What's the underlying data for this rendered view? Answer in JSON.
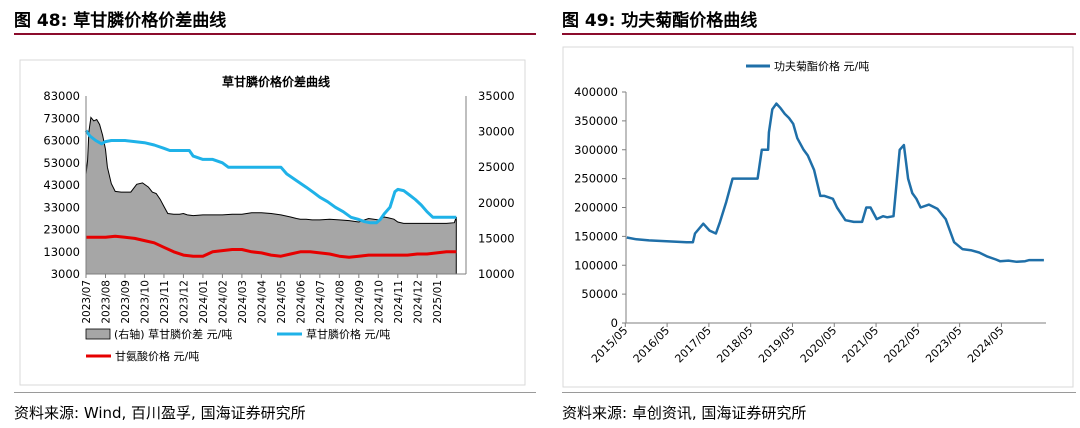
{
  "left": {
    "heading": "图 48: 草甘膦价格价差曲线",
    "source": "资料来源: Wind, 百川盈孚, 国海证券研究所"
  },
  "right": {
    "heading": "图 49: 功夫菊酯价格曲线",
    "source": "资料来源: 卓创资讯, 国海证券研究所"
  },
  "chart_data": [
    {
      "type": "area",
      "title": "草甘膦价格价差曲线",
      "x_tick_labels": [
        "2023/07",
        "2023/08",
        "2023/09",
        "2023/10",
        "2023/11",
        "2023/12",
        "2024/01",
        "2024/02",
        "2024/03",
        "2024/04",
        "2024/05",
        "2024/06",
        "2024/07",
        "2024/08",
        "2024/09",
        "2024/10",
        "2024/11",
        "2024/12",
        "2025/01"
      ],
      "y_left": {
        "ticks": [
          "83000",
          "73000",
          "63000",
          "53000",
          "43000",
          "33000",
          "23000",
          "13000",
          "3000"
        ],
        "ylim": [
          3000,
          83000
        ]
      },
      "y_right": {
        "ticks": [
          "35000",
          "30000",
          "25000",
          "20000",
          "15000",
          "10000"
        ],
        "ylim": [
          10000,
          35000
        ]
      },
      "x_range": [
        0,
        19.5
      ],
      "legend": [
        "(右轴) 草甘膦价差 元/吨",
        "草甘膦价格 元/吨",
        "甘氨酸价格 元/吨"
      ],
      "series": [
        {
          "name": "(右轴) 草甘膦价差 元/吨",
          "axis": "right",
          "color": "#a6a6a6",
          "x": [
            0,
            0.08,
            0.15,
            0.25,
            0.4,
            0.55,
            0.7,
            0.85,
            1.0,
            1.1,
            1.3,
            1.5,
            1.8,
            2.0,
            2.3,
            2.6,
            2.9,
            3.2,
            3.4,
            3.6,
            3.8,
            4.0,
            4.2,
            4.5,
            4.8,
            5.0,
            5.2,
            5.5,
            6.0,
            6.5,
            7.0,
            7.5,
            8.0,
            8.5,
            9.0,
            9.5,
            10.0,
            10.5,
            10.8,
            11.0,
            11.3,
            11.6,
            12.0,
            12.5,
            13.0,
            13.5,
            14.0,
            14.5,
            15.0,
            15.3,
            15.5,
            15.8,
            16.0,
            16.3,
            16.6,
            17.0,
            17.5,
            18.0,
            18.5,
            18.9,
            19.0
          ],
          "y": [
            24000,
            26000,
            30000,
            32000,
            31500,
            31700,
            31000,
            29500,
            27500,
            25000,
            22700,
            21600,
            21500,
            21500,
            21500,
            22600,
            22800,
            22200,
            21500,
            21300,
            20500,
            19500,
            18500,
            18400,
            18400,
            18500,
            18300,
            18200,
            18300,
            18300,
            18300,
            18400,
            18400,
            18600,
            18600,
            18500,
            18300,
            18000,
            17800,
            17700,
            17700,
            17600,
            17600,
            17700,
            17600,
            17500,
            17300,
            17800,
            17600,
            18000,
            17900,
            17700,
            17300,
            17100,
            17100,
            17100,
            17100,
            17100,
            17100,
            17200,
            18000
          ]
        },
        {
          "name": "草甘膦价格 元/吨",
          "axis": "left",
          "color": "#1fb2e8",
          "x": [
            0,
            0.2,
            0.5,
            0.8,
            1.0,
            1.3,
            1.6,
            2.0,
            2.5,
            3.0,
            3.5,
            4.0,
            4.3,
            4.6,
            5.0,
            5.3,
            5.5,
            6.0,
            6.5,
            7.0,
            7.3,
            7.6,
            8.0,
            8.5,
            9.0,
            9.5,
            10.0,
            10.3,
            10.8,
            11.3,
            11.7,
            12.0,
            12.4,
            12.8,
            13.2,
            13.6,
            14.0,
            14.3,
            14.6,
            14.9,
            15.1,
            15.3,
            15.6,
            15.85,
            16.0,
            16.3,
            16.6,
            16.9,
            17.2,
            17.5,
            17.8,
            18.2,
            18.6,
            19.0
          ],
          "y": [
            67500,
            65000,
            63000,
            61500,
            62500,
            63000,
            63000,
            63000,
            62500,
            62000,
            61000,
            59500,
            58500,
            58500,
            58500,
            58500,
            56000,
            54500,
            54500,
            53000,
            51000,
            51000,
            51000,
            51000,
            51000,
            51000,
            51000,
            48000,
            45000,
            42000,
            39500,
            37500,
            35500,
            33000,
            31000,
            28500,
            27500,
            26500,
            26000,
            26000,
            27500,
            30000,
            33000,
            40000,
            41000,
            40500,
            38500,
            36500,
            34000,
            31000,
            28500,
            28500,
            28500,
            28500
          ]
        },
        {
          "name": "甘氨酸价格 元/吨",
          "axis": "left",
          "color": "#e60000",
          "x": [
            0,
            1.0,
            1.5,
            2.0,
            2.5,
            3.0,
            3.5,
            4.0,
            4.5,
            5.0,
            5.5,
            6.0,
            6.5,
            7.0,
            7.5,
            8.0,
            8.5,
            9.0,
            9.5,
            10.0,
            10.5,
            11.0,
            11.5,
            12.0,
            12.5,
            13.0,
            13.5,
            14.0,
            14.5,
            15.0,
            15.5,
            16.0,
            16.5,
            17.0,
            17.5,
            18.0,
            18.5,
            19.0
          ],
          "y": [
            19500,
            19500,
            20000,
            19500,
            19000,
            18000,
            17000,
            15000,
            13000,
            11500,
            11000,
            11000,
            13000,
            13500,
            14000,
            14000,
            13000,
            12500,
            11500,
            11000,
            12000,
            13000,
            13000,
            12500,
            12000,
            11000,
            10500,
            11000,
            11500,
            11500,
            11500,
            11500,
            11500,
            12000,
            12000,
            12500,
            13000,
            13000
          ]
        }
      ]
    },
    {
      "type": "line",
      "x_tick_labels": [
        "2015/05",
        "2016/05",
        "2017/05",
        "2018/05",
        "2019/05",
        "2020/05",
        "2021/05",
        "2022/05",
        "2023/05",
        "2024/05"
      ],
      "ylim": [
        0,
        400000
      ],
      "y_ticks": [
        "400000",
        "350000",
        "300000",
        "250000",
        "200000",
        "150000",
        "100000",
        "50000",
        "0"
      ],
      "x_range": [
        2015.35,
        2025.4
      ],
      "legend": [
        "功夫菊酯价格 元/吨"
      ],
      "series": [
        {
          "name": "功夫菊酯价格 元/吨",
          "color": "#1f6fa8",
          "x": [
            2015.37,
            2015.6,
            2015.9,
            2016.2,
            2016.5,
            2016.8,
            2016.95,
            2017.0,
            2017.2,
            2017.35,
            2017.5,
            2017.6,
            2017.75,
            2017.9,
            2018.0,
            2018.1,
            2018.3,
            2018.5,
            2018.6,
            2018.62,
            2018.75,
            2018.77,
            2018.85,
            2018.95,
            2019.05,
            2019.15,
            2019.25,
            2019.35,
            2019.45,
            2019.6,
            2019.7,
            2019.85,
            2020.0,
            2020.1,
            2020.3,
            2020.4,
            2020.6,
            2020.8,
            2021.0,
            2021.1,
            2021.2,
            2021.35,
            2021.5,
            2021.6,
            2021.75,
            2021.9,
            2022.0,
            2022.1,
            2022.2,
            2022.3,
            2022.4,
            2022.6,
            2022.8,
            2023.0,
            2023.2,
            2023.4,
            2023.6,
            2023.8,
            2024.0,
            2024.2,
            2024.3,
            2024.5,
            2024.7,
            2024.9,
            2025.0,
            2025.2,
            2025.35
          ],
          "y": [
            148000,
            145000,
            143000,
            142000,
            141000,
            140000,
            140000,
            155000,
            172000,
            160000,
            155000,
            175000,
            210000,
            250000,
            250000,
            250000,
            250000,
            250000,
            300000,
            300000,
            300000,
            330000,
            370000,
            380000,
            372000,
            362000,
            355000,
            345000,
            320000,
            300000,
            290000,
            265000,
            220000,
            220000,
            215000,
            200000,
            178000,
            175000,
            175000,
            200000,
            200000,
            180000,
            185000,
            183000,
            185000,
            300000,
            308000,
            250000,
            225000,
            215000,
            200000,
            205000,
            198000,
            180000,
            140000,
            128000,
            126000,
            122000,
            115000,
            110000,
            107000,
            108000,
            106000,
            107000,
            109000,
            109000,
            109000
          ]
        }
      ]
    }
  ]
}
